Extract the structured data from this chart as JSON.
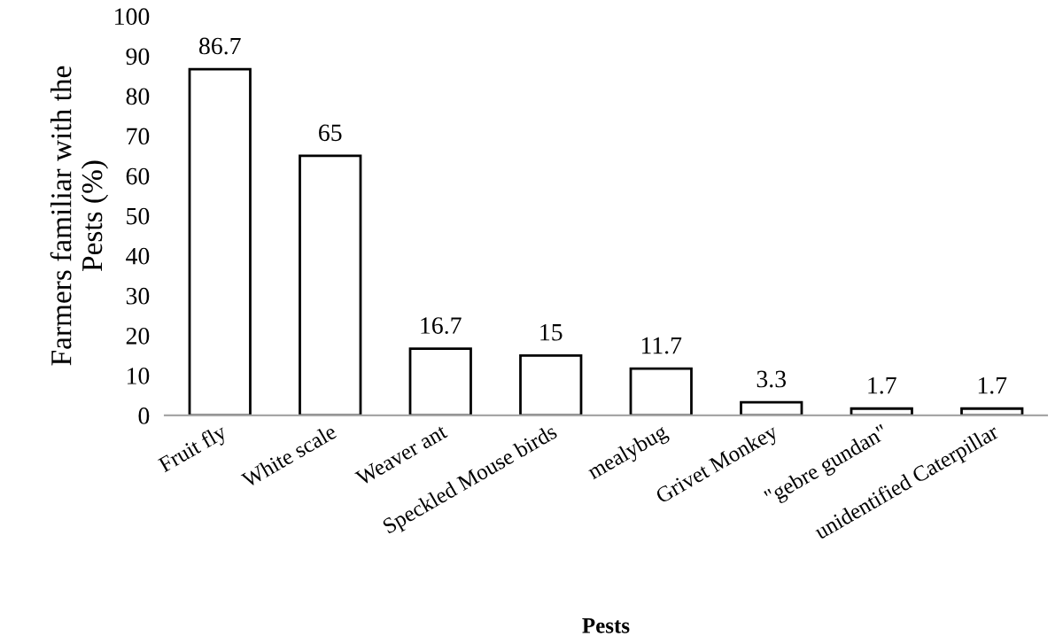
{
  "chart_data": {
    "type": "bar",
    "xlabel": "Pests",
    "ylabel": "Farmers familiar with the\nPests (%)",
    "categories": [
      "Fruit fly",
      "White scale",
      "Weaver ant",
      "Speckled Mouse birds",
      "mealybug",
      "Grivet Monkey",
      "\"gebre gundan\"",
      "unidentified Caterpillar"
    ],
    "values": [
      86.7,
      65,
      16.7,
      15,
      11.7,
      3.3,
      1.7,
      1.7
    ],
    "color": "#ffffff",
    "ylim": [
      0,
      100
    ],
    "yticks": [
      0,
      10,
      20,
      30,
      40,
      50,
      60,
      70,
      80,
      90,
      100
    ],
    "data_labels": true,
    "grid": false,
    "legend": false
  }
}
